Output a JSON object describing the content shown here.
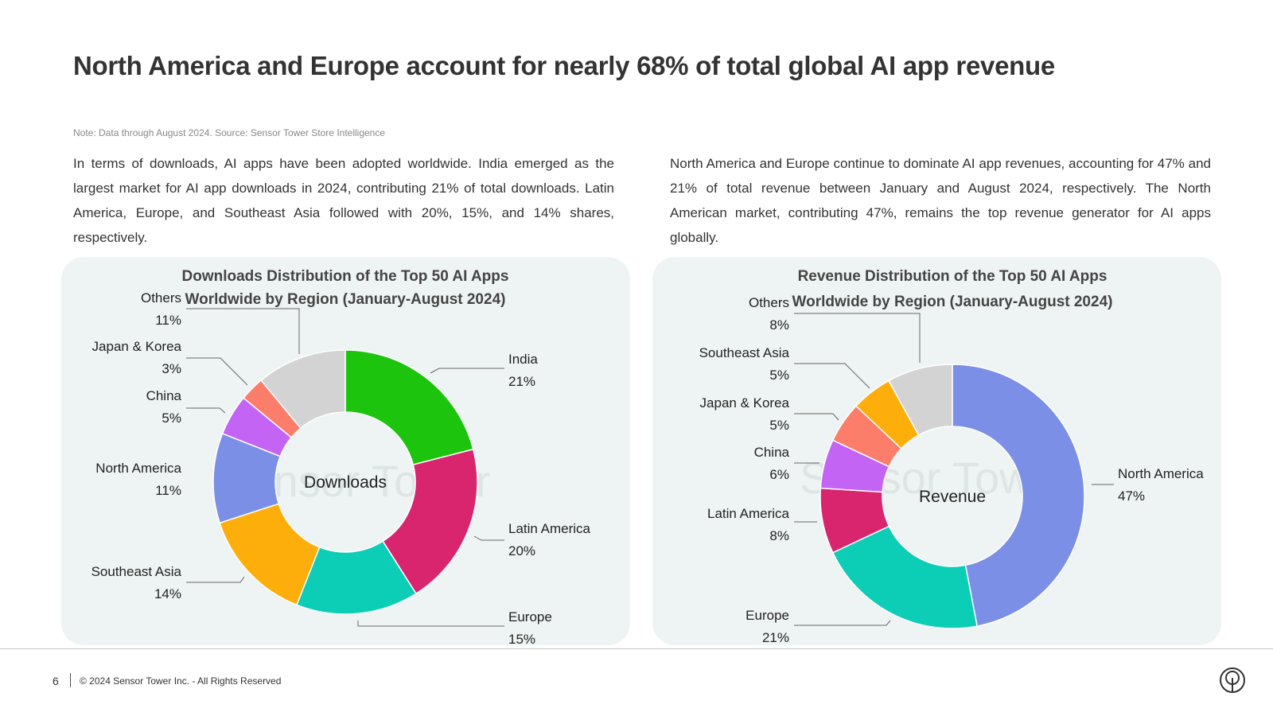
{
  "page": {
    "title": "North America and Europe account for nearly 68% of total global AI app revenue",
    "note": "Note: Data through August 2024. Source: Sensor Tower Store Intelligence",
    "left_paragraph": "In terms of downloads, AI apps have been adopted worldwide. India emerged as the largest market for AI app downloads in 2024, contributing 21% of total downloads. Latin America, Europe, and Southeast Asia followed with 20%, 15%, and 14% shares, respectively.",
    "right_paragraph": "North America and Europe continue to dominate AI app revenues, accounting for 47% and 21% of total revenue between January and August 2024, respectively. The North American market, contributing 47%, remains the top revenue generator for AI apps globally."
  },
  "footer": {
    "page_number": "6",
    "copyright": "© 2024 Sensor Tower Inc. - All Rights Reserved",
    "logo_icon": "sensor-tower-logo-icon"
  },
  "watermark": "Sensor Tower",
  "chart_data": [
    {
      "type": "pie",
      "donut": true,
      "title": "Downloads Distribution of the Top 50 AI Apps Worldwide by Region (January-August 2024)",
      "title_lines": [
        "Downloads Distribution of the Top 50 AI Apps",
        "Worldwide by Region (January-August 2024)"
      ],
      "center_label": "Downloads",
      "unit": "%",
      "slices": [
        {
          "label": "India",
          "value": 21,
          "color": "#1cc40e"
        },
        {
          "label": "Latin America",
          "value": 20,
          "color": "#d9246e"
        },
        {
          "label": "Europe",
          "value": 15,
          "color": "#0ccdb5"
        },
        {
          "label": "Southeast Asia",
          "value": 14,
          "color": "#fdae0b"
        },
        {
          "label": "North America",
          "value": 11,
          "color": "#7b8fe6"
        },
        {
          "label": "China",
          "value": 5,
          "color": "#c464f5"
        },
        {
          "label": "Japan & Korea",
          "value": 3,
          "color": "#fb7d6a"
        },
        {
          "label": "Others",
          "value": 11,
          "color": "#d3d3d3"
        }
      ]
    },
    {
      "type": "pie",
      "donut": true,
      "title": "Revenue Distribution of the Top 50 AI Apps Worldwide by Region (January-August 2024)",
      "title_lines": [
        "Revenue Distribution of the Top 50 AI Apps",
        "Worldwide by Region (January-August 2024)"
      ],
      "center_label": "Revenue",
      "unit": "%",
      "slices": [
        {
          "label": "North America",
          "value": 47,
          "color": "#7b8fe6"
        },
        {
          "label": "Europe",
          "value": 21,
          "color": "#0ccdb5"
        },
        {
          "label": "Latin America",
          "value": 8,
          "color": "#d9246e"
        },
        {
          "label": "China",
          "value": 6,
          "color": "#c464f5"
        },
        {
          "label": "Japan & Korea",
          "value": 5,
          "color": "#fb7d6a"
        },
        {
          "label": "Southeast Asia",
          "value": 5,
          "color": "#fdae0b"
        },
        {
          "label": "Others",
          "value": 8,
          "color": "#d3d3d3"
        }
      ]
    }
  ]
}
